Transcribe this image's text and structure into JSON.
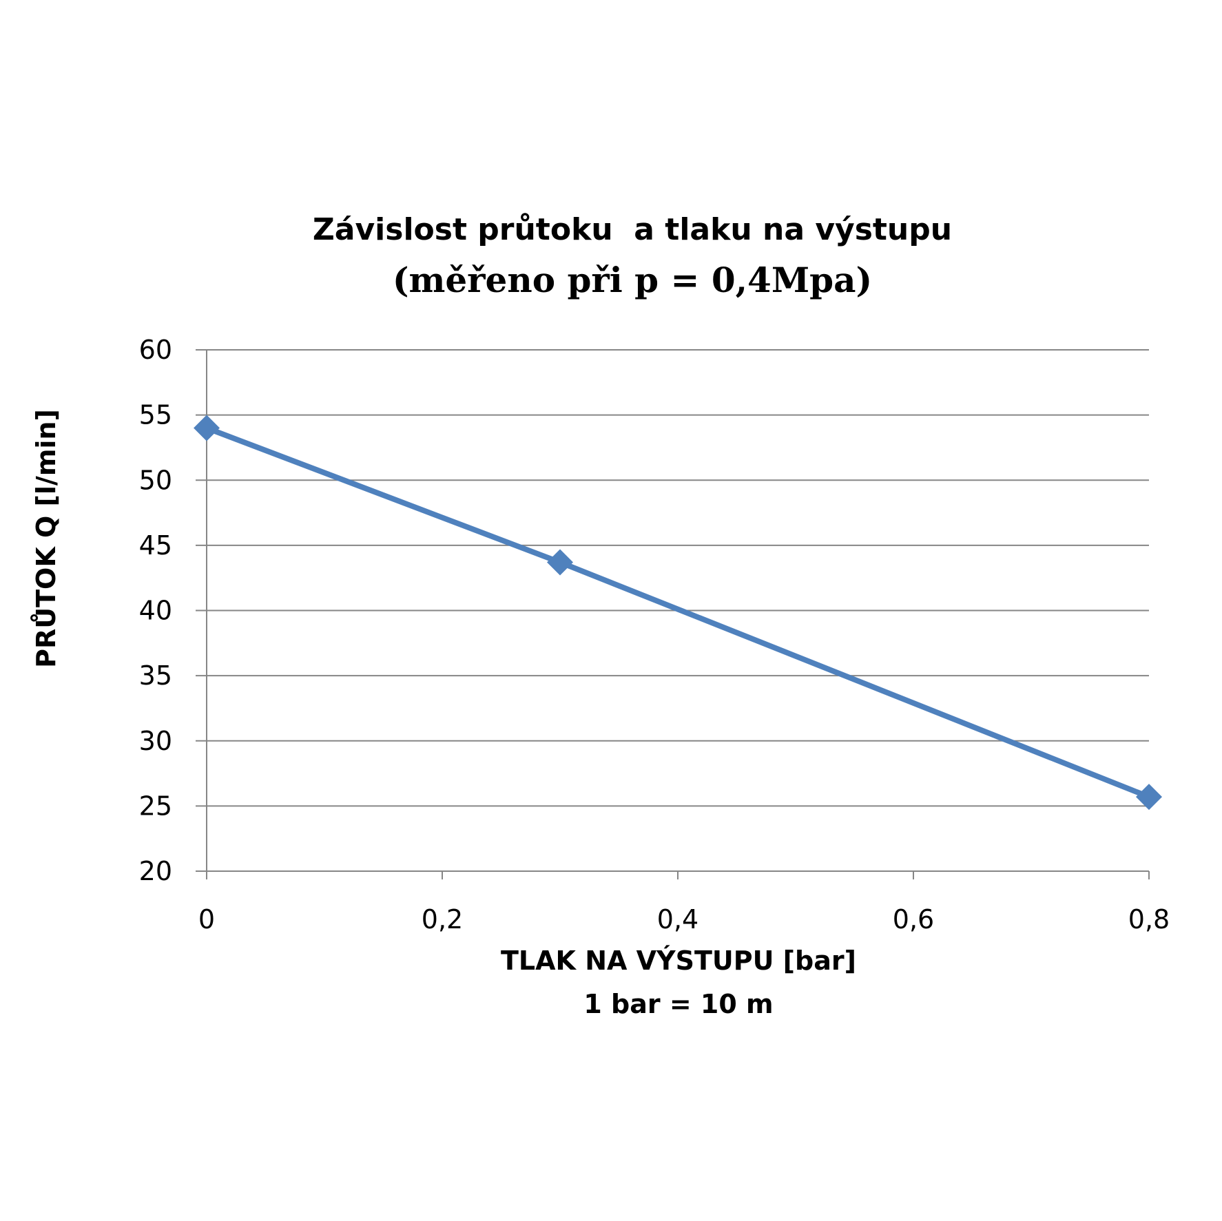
{
  "chart_data": {
    "type": "line",
    "title": "Závislost průtoku  a tlaku na výstupu",
    "subtitle": "(měřeno při p = 0,4Mpa)",
    "xlabel": "TLAK NA VÝSTUPU [bar]",
    "xlabel_line2": "1 bar = 10 m",
    "ylabel": "PRŮTOK Q [l/min]",
    "xlim": [
      0,
      0.8
    ],
    "ylim": [
      20,
      60
    ],
    "x_ticks": [
      0,
      0.2,
      0.4,
      0.6,
      0.8
    ],
    "x_tick_labels": [
      "0",
      "0,2",
      "0,4",
      "0,6",
      "0,8"
    ],
    "y_ticks": [
      20,
      25,
      30,
      35,
      40,
      45,
      50,
      55,
      60
    ],
    "y_tick_labels": [
      "20",
      "25",
      "30",
      "35",
      "40",
      "45",
      "50",
      "55",
      "60"
    ],
    "grid": true,
    "marker": "diamond",
    "series": [
      {
        "color": "#4F81BD",
        "points": [
          {
            "x": 0,
            "y": 54
          },
          {
            "x": 0.3,
            "y": 43.7
          },
          {
            "x": 0.8,
            "y": 25.7
          }
        ]
      }
    ]
  }
}
